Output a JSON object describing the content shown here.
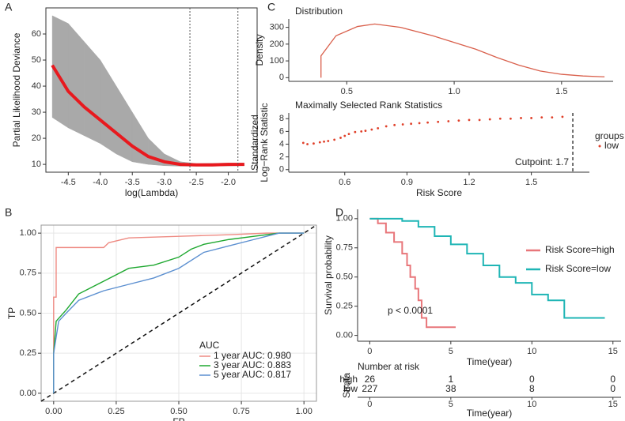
{
  "chart_data": [
    {
      "type": "band_line",
      "panel": "A",
      "xlabel": "log(Lambda)",
      "ylabel": "Partial Likelihood Deviance",
      "x": [
        -4.75,
        -4.5,
        -4.25,
        -4,
        -3.75,
        -3.5,
        -3.25,
        -3,
        -2.75,
        -2.5,
        -2.25,
        -2,
        -1.75
      ],
      "series": [
        {
          "color": "#e8191e",
          "band_color": "#a9a9a9",
          "values": [
            48,
            38,
            32,
            27,
            22,
            17,
            13,
            11,
            10,
            9.8,
            9.8,
            10,
            10
          ],
          "upper": [
            67,
            64,
            57,
            50,
            40,
            30,
            20,
            14,
            11,
            10.3,
            10.4,
            10.5,
            10.5
          ],
          "lower": [
            28,
            24,
            21,
            18,
            14,
            11,
            10,
            9.5,
            9.3,
            9.3,
            9.3,
            9.4,
            9.5
          ]
        }
      ],
      "vlines": [
        -2.6,
        -1.85
      ],
      "xlim": [
        -4.85,
        -1.55
      ],
      "ylim": [
        7,
        70
      ],
      "xticks": [
        -4.5,
        {
          "value": -4,
          "label": "-4.0"
        },
        -3.5,
        {
          "value": -3,
          "label": "-3.0"
        },
        -2.5,
        {
          "value": -2,
          "label": "-2.0"
        }
      ],
      "yticks": [
        10,
        20,
        30,
        40,
        50,
        60
      ]
    },
    {
      "type": "line",
      "panel": "B",
      "xlabel": "FP",
      "ylabel": "TP",
      "legend_title": "AUC",
      "legend": "lower right",
      "grid": true,
      "series": [
        {
          "name": "1 year AUC: 0.980",
          "color": "#ee8a82",
          "x": [
            0,
            0,
            0.01,
            0.01,
            0.1,
            0.2,
            0.22,
            0.3,
            0.5,
            0.7,
            0.85,
            1
          ],
          "values": [
            0,
            0.6,
            0.6,
            0.91,
            0.91,
            0.91,
            0.94,
            0.97,
            0.98,
            0.99,
            1,
            1
          ]
        },
        {
          "name": "3 year AUC: 0.883",
          "color": "#1fa830",
          "x": [
            0,
            0,
            0.01,
            0.05,
            0.1,
            0.2,
            0.3,
            0.4,
            0.5,
            0.55,
            0.6,
            0.7,
            0.8,
            0.9,
            1
          ],
          "values": [
            0,
            0.25,
            0.45,
            0.52,
            0.62,
            0.7,
            0.78,
            0.8,
            0.85,
            0.9,
            0.93,
            0.96,
            0.98,
            1,
            1
          ]
        },
        {
          "name": "5 year AUC: 0.817",
          "color": "#5b8fd0",
          "x": [
            0,
            0,
            0.02,
            0.05,
            0.1,
            0.2,
            0.3,
            0.4,
            0.5,
            0.6,
            0.7,
            0.8,
            0.9,
            1
          ],
          "values": [
            0,
            0.25,
            0.45,
            0.5,
            0.58,
            0.64,
            0.68,
            0.72,
            0.78,
            0.88,
            0.92,
            0.96,
            1,
            1
          ]
        }
      ],
      "xlim": [
        -0.05,
        1.05
      ],
      "ylim": [
        -0.05,
        1.05
      ],
      "xticks": [
        {
          "value": 0,
          "label": "0.00"
        },
        0.25,
        {
          "value": 0.5,
          "label": "0.50"
        },
        0.75,
        {
          "value": 1,
          "label": "1.00"
        }
      ],
      "yticks": [
        {
          "value": 0,
          "label": "0.00"
        },
        0.25,
        {
          "value": 0.5,
          "label": "0.50"
        },
        0.75,
        {
          "value": 1,
          "label": "1.00"
        }
      ]
    },
    {
      "type": "density",
      "panel": "C",
      "title": "Distribution",
      "ylabel": "Density",
      "color": "#d9604c",
      "x": [
        0.38,
        0.38,
        0.45,
        0.55,
        0.63,
        0.75,
        0.9,
        1.0,
        1.1,
        1.2,
        1.3,
        1.4,
        1.5,
        1.6,
        1.7
      ],
      "values": [
        0,
        130,
        250,
        305,
        320,
        300,
        250,
        210,
        170,
        120,
        75,
        40,
        20,
        10,
        5
      ],
      "xlim": [
        0.23,
        1.74
      ],
      "ylim": [
        -22,
        350
      ],
      "xticks": [
        0.5,
        {
          "value": 1,
          "label": "1.0"
        },
        1.5
      ],
      "yticks": [
        0,
        100,
        200,
        300
      ]
    },
    {
      "type": "scatter",
      "title": "Maximally Selected Rank Statistics",
      "xlabel": "Risk Score",
      "ylabel": [
        "Standardized",
        "Log−Rank Statistic"
      ],
      "legend_title": "groups",
      "cutpoint": 1.7,
      "annotation": "Cutpoint: 1.7",
      "series": [
        {
          "name": "low",
          "color": "#e0402a",
          "x": [
            0.4,
            0.42,
            0.45,
            0.48,
            0.5,
            0.52,
            0.55,
            0.58,
            0.6,
            0.62,
            0.65,
            0.68,
            0.7,
            0.73,
            0.76,
            0.8,
            0.84,
            0.88,
            0.92,
            0.96,
            1.0,
            1.05,
            1.1,
            1.15,
            1.2,
            1.25,
            1.3,
            1.35,
            1.4,
            1.45,
            1.5,
            1.55,
            1.6,
            1.65
          ],
          "values": [
            4.2,
            4.0,
            4.1,
            4.3,
            4.4,
            4.5,
            4.7,
            5.0,
            5.3,
            5.6,
            5.9,
            6.0,
            6.1,
            6.3,
            6.5,
            6.8,
            7.0,
            7.1,
            7.2,
            7.3,
            7.4,
            7.5,
            7.6,
            7.7,
            7.8,
            7.8,
            7.9,
            8.0,
            8.0,
            8.1,
            8.1,
            8.2,
            8.2,
            8.3
          ]
        }
      ],
      "xlim": [
        0.33,
        1.78
      ],
      "ylim": [
        -0.4,
        8.9
      ],
      "xticks": [
        0.6,
        0.9,
        1.2,
        1.5
      ],
      "yticks": [
        0,
        2,
        4,
        6,
        8
      ]
    },
    {
      "type": "step",
      "panel": "D",
      "xlabel": "Time(year)",
      "ylabel": "Survival probability",
      "annotation": "p < 0.0001",
      "series": [
        {
          "name": "Risk Score=high",
          "color": "#e8767a",
          "x": [
            0,
            0.5,
            1,
            1.5,
            2,
            2.3,
            2.5,
            2.8,
            3,
            3.2,
            3.5,
            5.3
          ],
          "values": [
            1,
            0.96,
            0.88,
            0.8,
            0.7,
            0.6,
            0.5,
            0.4,
            0.3,
            0.15,
            0.07,
            0.07
          ]
        },
        {
          "name": "Risk Score=low",
          "color": "#1fb5b5",
          "x": [
            0,
            2,
            3,
            4,
            5,
            6,
            7,
            8,
            9,
            10,
            11,
            12,
            14.5
          ],
          "values": [
            1,
            0.98,
            0.93,
            0.85,
            0.78,
            0.7,
            0.6,
            0.5,
            0.45,
            0.35,
            0.3,
            0.15,
            0.15
          ]
        }
      ],
      "xlim": [
        -0.75,
        15.5
      ],
      "ylim": [
        -0.05,
        1.08
      ],
      "xticks": [
        0,
        5,
        10,
        15
      ],
      "yticks": [
        {
          "value": 0,
          "label": "0.00"
        },
        0.25,
        {
          "value": 0.5,
          "label": "0.50"
        },
        0.75,
        {
          "value": 1,
          "label": "1.00"
        }
      ],
      "risk_table": {
        "title": "Number at risk",
        "ylabel": "Strata",
        "xlabel": "Time(year)",
        "rows": [
          {
            "name": "high",
            "color": "#e8767a",
            "values": [
              26,
              1,
              0,
              0
            ]
          },
          {
            "name": "low",
            "color": "#1fb5b5",
            "values": [
              227,
              38,
              8,
              0
            ]
          }
        ]
      }
    }
  ]
}
